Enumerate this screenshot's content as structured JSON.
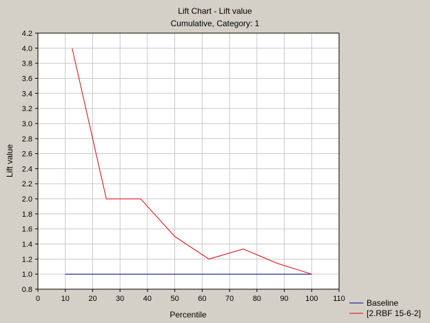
{
  "chart_data": {
    "type": "line",
    "title": "Lift Chart - Lift value",
    "subtitle": "Cumulative, Category: 1",
    "xlabel": "Percentile",
    "ylabel": "Lift value",
    "xlim": [
      0,
      110
    ],
    "ylim": [
      0.8,
      4.2
    ],
    "xticks": [
      0,
      10,
      20,
      30,
      40,
      50,
      60,
      70,
      80,
      90,
      100,
      110
    ],
    "yticks": [
      0.8,
      1.0,
      1.2,
      1.4,
      1.6,
      1.8,
      2.0,
      2.2,
      2.4,
      2.6,
      2.8,
      3.0,
      3.2,
      3.4,
      3.6,
      3.8,
      4.0,
      4.2
    ],
    "grid": true,
    "legend_position": "bottom-right",
    "series": [
      {
        "name": "Baseline",
        "color": "#0000a0",
        "x": [
          10,
          100
        ],
        "y": [
          1.0,
          1.0
        ]
      },
      {
        "name": "[2.RBF 15-6-2]",
        "color": "#e00000",
        "x": [
          12.5,
          25,
          37.5,
          50,
          62.5,
          75,
          87.5,
          100
        ],
        "y": [
          4.0,
          2.0,
          2.0,
          1.5,
          1.2,
          1.333,
          1.143,
          1.0
        ]
      }
    ]
  }
}
